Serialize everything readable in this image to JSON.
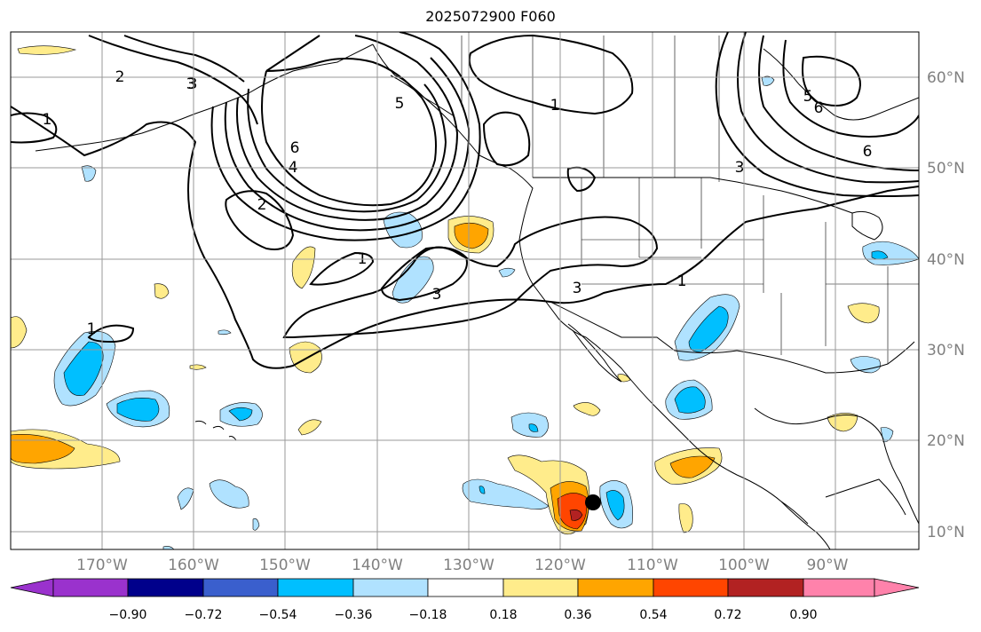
{
  "title": "2025072900 F060",
  "lon_ticks": [
    "170°W",
    "160°W",
    "150°W",
    "140°W",
    "130°W",
    "120°W",
    "110°W",
    "100°W",
    "90°W"
  ],
  "lat_ticks": [
    "60°N",
    "50°N",
    "40°N",
    "30°N",
    "20°N",
    "10°N"
  ],
  "colorbar": {
    "ticks": [
      "−0.90",
      "−0.72",
      "−0.54",
      "−0.36",
      "−0.18",
      "0.18",
      "0.36",
      "0.54",
      "0.72",
      "0.90"
    ],
    "colors": [
      "#9a32cd",
      "#00008b",
      "#3a5fcd",
      "#00bfff",
      "#b0e2ff",
      "#ffffff",
      "#ffec8b",
      "#ffa500",
      "#ff4500",
      "#b22222",
      "#ff82ab"
    ]
  },
  "contour_labels": [
    "2",
    "3",
    "1",
    "5",
    "6",
    "4",
    "2",
    "1",
    "3",
    "1",
    "3",
    "5",
    "6",
    "3",
    "6",
    "1",
    "1",
    "3"
  ],
  "colors": {
    "neg_light": "#b0e2ff",
    "neg_mid": "#00bfff",
    "pos_light": "#ffec8b",
    "pos_mid": "#ffa500",
    "pos_strong": "#ff4500",
    "pos_max": "#b22222",
    "grid": "#9a9a9a",
    "tick_text": "#808080"
  },
  "marker": "storm-center-dot"
}
